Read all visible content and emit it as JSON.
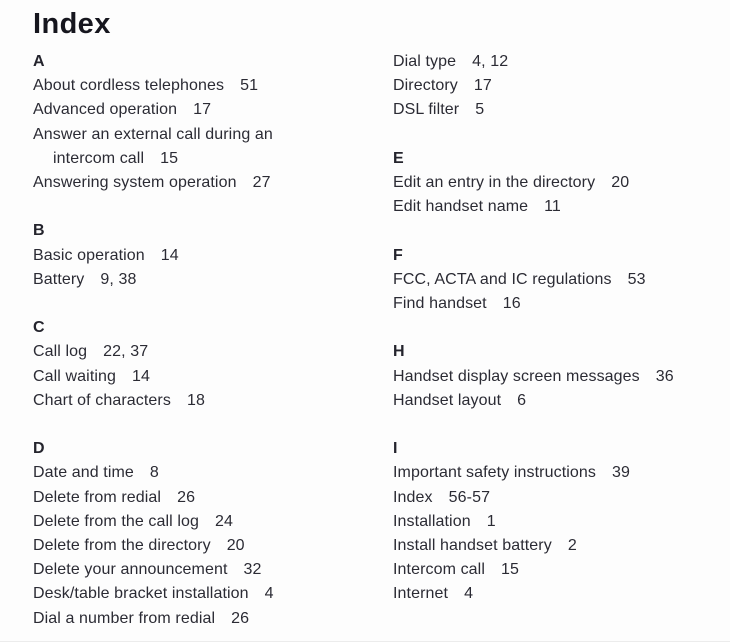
{
  "page": {
    "title": "Index",
    "background": "#fdfdfd",
    "text_color": "#2b2b34",
    "title_color": "#16161e"
  },
  "columns": [
    {
      "side": "left",
      "sections": [
        {
          "letter": "A",
          "entries": [
            {
              "label": "About cordless telephones",
              "pages": "51"
            },
            {
              "label": "Advanced operation",
              "pages": "17"
            },
            {
              "label": "Answer an external call during an",
              "label2": "intercom call",
              "pages": "15"
            },
            {
              "label": "Answering system operation",
              "pages": "27"
            }
          ]
        },
        {
          "letter": "B",
          "entries": [
            {
              "label": "Basic operation",
              "pages": "14"
            },
            {
              "label": "Battery",
              "pages": "9, 38"
            }
          ]
        },
        {
          "letter": "C",
          "entries": [
            {
              "label": "Call log",
              "pages": "22, 37"
            },
            {
              "label": "Call waiting",
              "pages": "14"
            },
            {
              "label": "Chart of characters",
              "pages": "18"
            }
          ]
        },
        {
          "letter": "D",
          "entries": [
            {
              "label": "Date and time",
              "pages": "8"
            },
            {
              "label": "Delete from redial",
              "pages": "26"
            },
            {
              "label": "Delete from the call log",
              "pages": "24"
            },
            {
              "label": "Delete from the directory",
              "pages": "20"
            },
            {
              "label": "Delete your announcement",
              "pages": "32"
            },
            {
              "label": "Desk/table bracket installation",
              "pages": "4"
            },
            {
              "label": "Dial a number from redial",
              "pages": "26"
            }
          ]
        }
      ]
    },
    {
      "side": "right",
      "sections": [
        {
          "letter": "",
          "entries": [
            {
              "label": "Dial type",
              "pages": "4, 12"
            },
            {
              "label": "Directory",
              "pages": "17"
            },
            {
              "label": "DSL filter",
              "pages": "5"
            }
          ]
        },
        {
          "letter": "E",
          "entries": [
            {
              "label": "Edit an entry in the directory",
              "pages": "20"
            },
            {
              "label": "Edit handset name",
              "pages": "11"
            }
          ]
        },
        {
          "letter": "F",
          "entries": [
            {
              "label": "FCC, ACTA and IC regulations",
              "pages": "53"
            },
            {
              "label": "Find handset",
              "pages": "16"
            }
          ]
        },
        {
          "letter": "H",
          "entries": [
            {
              "label": "Handset display screen messages",
              "pages": "36"
            },
            {
              "label": "Handset layout",
              "pages": "6"
            }
          ]
        },
        {
          "letter": "I",
          "entries": [
            {
              "label": "Important safety instructions",
              "pages": "39"
            },
            {
              "label": "Index",
              "pages": "56-57"
            },
            {
              "label": "Installation",
              "pages": "1"
            },
            {
              "label": "Install handset battery",
              "pages": "2"
            },
            {
              "label": "Intercom call",
              "pages": "15"
            },
            {
              "label": "Internet",
              "pages": "4"
            }
          ]
        }
      ]
    }
  ]
}
